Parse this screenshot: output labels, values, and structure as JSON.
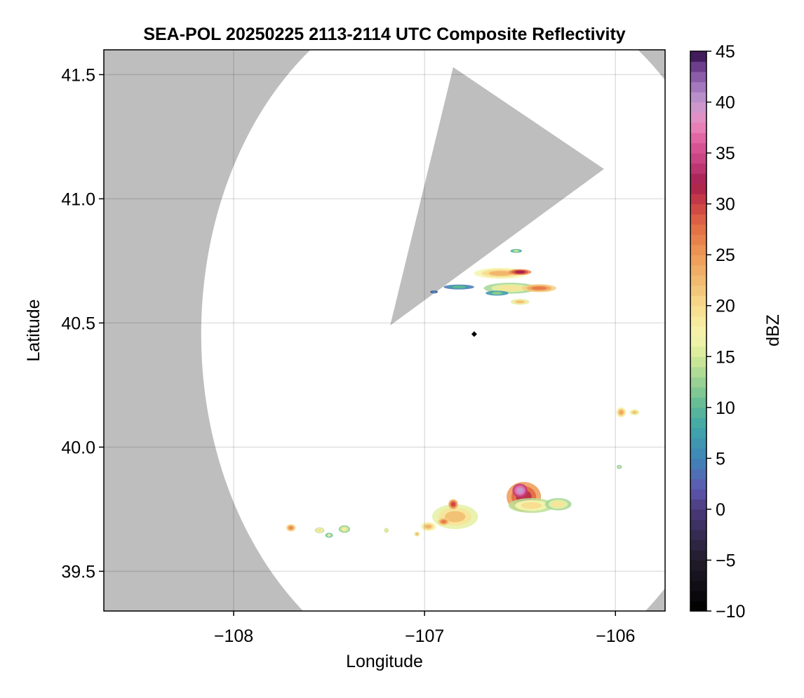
{
  "chart_data": {
    "type": "heatmap",
    "title": "SEA-POL 20250225 2113-2114 UTC Composite Reflectivity",
    "xlabel": "Longitude",
    "ylabel": "Latitude",
    "xlim": [
      -108.68,
      -105.74
    ],
    "ylim": [
      39.34,
      41.6
    ],
    "x_ticks": [
      -108,
      -107,
      -106
    ],
    "x_tick_labels": [
      "−108",
      "−107",
      "−106"
    ],
    "y_ticks": [
      39.5,
      40.0,
      40.5,
      41.0,
      41.5
    ],
    "y_tick_labels": [
      "39.5",
      "40.0",
      "40.5",
      "41.0",
      "41.5"
    ],
    "grid": true,
    "background_color": "#bebebe",
    "coverage_color": "#ffffff",
    "radar": {
      "lon": -106.74,
      "lat": 40.455,
      "radius_deg": 1.43
    },
    "blocked_sector": {
      "apex": [
        -107.18,
        40.49
      ],
      "edge_points": [
        [
          -106.85,
          41.53
        ],
        [
          -106.06,
          41.12
        ]
      ]
    },
    "echoes": [
      {
        "lon": -106.6,
        "lat": 40.7,
        "rlon": 0.14,
        "rlat": 0.022,
        "dbz": 23
      },
      {
        "lon": -106.5,
        "lat": 40.705,
        "rlon": 0.06,
        "rlat": 0.012,
        "dbz": 32
      },
      {
        "lon": -106.55,
        "lat": 40.64,
        "rlon": 0.14,
        "rlat": 0.022,
        "dbz": 19
      },
      {
        "lon": -106.4,
        "lat": 40.64,
        "rlon": 0.09,
        "rlat": 0.016,
        "dbz": 27
      },
      {
        "lon": -106.82,
        "lat": 40.645,
        "rlon": 0.08,
        "rlat": 0.01,
        "dbz": 10
      },
      {
        "lon": -106.95,
        "lat": 40.625,
        "rlon": 0.02,
        "rlat": 0.006,
        "dbz": 6
      },
      {
        "lon": -106.62,
        "lat": 40.62,
        "rlon": 0.06,
        "rlat": 0.01,
        "dbz": 12
      },
      {
        "lon": -106.5,
        "lat": 40.585,
        "rlon": 0.05,
        "rlat": 0.012,
        "dbz": 22
      },
      {
        "lon": -106.52,
        "lat": 40.79,
        "rlon": 0.03,
        "rlat": 0.008,
        "dbz": 14
      },
      {
        "lon": -105.97,
        "lat": 40.14,
        "rlon": 0.025,
        "rlat": 0.02,
        "dbz": 24
      },
      {
        "lon": -105.9,
        "lat": 40.14,
        "rlon": 0.025,
        "rlat": 0.012,
        "dbz": 22
      },
      {
        "lon": -106.48,
        "lat": 39.8,
        "rlon": 0.09,
        "rlat": 0.06,
        "dbz": 31
      },
      {
        "lon": -106.5,
        "lat": 39.825,
        "rlon": 0.04,
        "rlat": 0.028,
        "dbz": 40
      },
      {
        "lon": -106.44,
        "lat": 39.765,
        "rlon": 0.12,
        "rlat": 0.03,
        "dbz": 20
      },
      {
        "lon": -106.3,
        "lat": 39.77,
        "rlon": 0.07,
        "rlat": 0.025,
        "dbz": 19
      },
      {
        "lon": -106.84,
        "lat": 39.72,
        "rlon": 0.12,
        "rlat": 0.05,
        "dbz": 22
      },
      {
        "lon": -106.85,
        "lat": 39.77,
        "rlon": 0.025,
        "rlat": 0.02,
        "dbz": 30
      },
      {
        "lon": -106.9,
        "lat": 39.7,
        "rlon": 0.03,
        "rlat": 0.015,
        "dbz": 27
      },
      {
        "lon": -106.98,
        "lat": 39.68,
        "rlon": 0.04,
        "rlat": 0.018,
        "dbz": 23
      },
      {
        "lon": -107.7,
        "lat": 39.675,
        "rlon": 0.025,
        "rlat": 0.015,
        "dbz": 26
      },
      {
        "lon": -107.55,
        "lat": 39.665,
        "rlon": 0.025,
        "rlat": 0.012,
        "dbz": 20
      },
      {
        "lon": -107.42,
        "lat": 39.67,
        "rlon": 0.03,
        "rlat": 0.015,
        "dbz": 18
      },
      {
        "lon": -107.5,
        "lat": 39.645,
        "rlon": 0.02,
        "rlat": 0.01,
        "dbz": 16
      },
      {
        "lon": -107.04,
        "lat": 39.65,
        "rlon": 0.015,
        "rlat": 0.01,
        "dbz": 22
      },
      {
        "lon": -107.2,
        "lat": 39.665,
        "rlon": 0.012,
        "rlat": 0.01,
        "dbz": 20
      },
      {
        "lon": -105.98,
        "lat": 39.92,
        "rlon": 0.012,
        "rlat": 0.008,
        "dbz": 15
      }
    ],
    "colorbar": {
      "label": "dBZ",
      "min": -10,
      "max": 45,
      "ticks": [
        -10,
        -5,
        0,
        5,
        10,
        15,
        20,
        25,
        30,
        35,
        40,
        45
      ],
      "tick_labels": [
        "−10",
        "−5",
        "0",
        "5",
        "10",
        "15",
        "20",
        "25",
        "30",
        "35",
        "40",
        "45"
      ],
      "stops": [
        [
          -10,
          "#000000"
        ],
        [
          -5,
          "#221c2c"
        ],
        [
          0,
          "#4a3a7a"
        ],
        [
          2,
          "#5e58b0"
        ],
        [
          5,
          "#3f85b8"
        ],
        [
          8,
          "#3fa6a8"
        ],
        [
          10,
          "#5cb896"
        ],
        [
          12,
          "#8ccc92"
        ],
        [
          15,
          "#d4ea98"
        ],
        [
          17,
          "#f6f5ae"
        ],
        [
          20,
          "#f8dc8e"
        ],
        [
          22,
          "#f1c074"
        ],
        [
          25,
          "#ee9a55"
        ],
        [
          28,
          "#e16a44"
        ],
        [
          30,
          "#cc4047"
        ],
        [
          32,
          "#a61e4d"
        ],
        [
          34,
          "#c23e7c"
        ],
        [
          36,
          "#dd5a9a"
        ],
        [
          38,
          "#ea8cc0"
        ],
        [
          40,
          "#c39ad0"
        ],
        [
          42,
          "#9a6cb6"
        ],
        [
          44,
          "#5c2e7c"
        ],
        [
          45,
          "#2a0a40"
        ]
      ]
    }
  }
}
